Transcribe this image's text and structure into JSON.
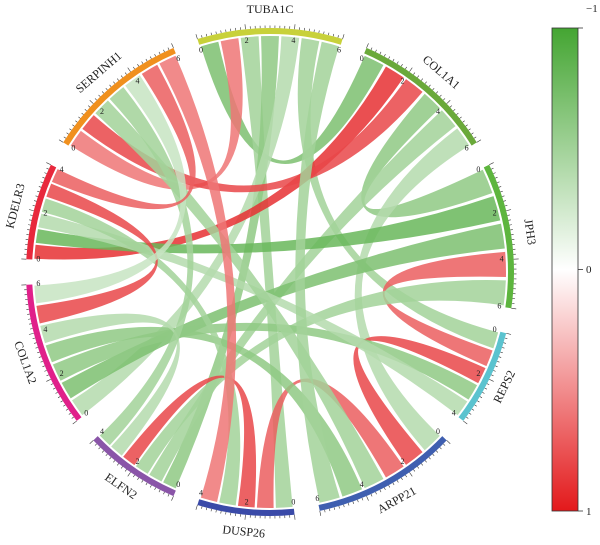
{
  "chart_data": {
    "type": "chord",
    "sectors": [
      {
        "name": "TUBA1C",
        "color": "#c8d13a",
        "max": 6,
        "ticks": [
          "0",
          "2",
          "4",
          "6"
        ]
      },
      {
        "name": "COL1A1",
        "color": "#6aa93a",
        "max": 6,
        "ticks": [
          "0",
          "2",
          "4",
          "6"
        ]
      },
      {
        "name": "JPH3",
        "color": "#5db53e",
        "max": 6,
        "ticks": [
          "0",
          "2",
          "4",
          "6"
        ]
      },
      {
        "name": "REPS2",
        "color": "#5bc3cf",
        "max": 4,
        "ticks": [
          "0",
          "2",
          "4"
        ]
      },
      {
        "name": "ARPP21",
        "color": "#3f5fb0",
        "max": 6,
        "ticks": [
          "0",
          "2",
          "4",
          "6"
        ]
      },
      {
        "name": "DUSP26",
        "color": "#3a4aa8",
        "max": 4,
        "ticks": [
          "0",
          "2",
          "4"
        ]
      },
      {
        "name": "ELFN2",
        "color": "#8a55a8",
        "max": 4,
        "ticks": [
          "0",
          "2",
          "4"
        ]
      },
      {
        "name": "COL1A2",
        "color": "#e0208a",
        "max": 6,
        "ticks": [
          "0",
          "2",
          "4",
          "6"
        ]
      },
      {
        "name": "KDELR3",
        "color": "#e8283c",
        "max": 4,
        "ticks": [
          "0",
          "2",
          "4"
        ]
      },
      {
        "name": "SERPINH1",
        "color": "#f0901e",
        "max": 6,
        "ticks": [
          "0",
          "2",
          "4",
          "6"
        ]
      }
    ],
    "links": [
      {
        "source": "TUBA1C",
        "target": "COL1A1",
        "value": -0.7
      },
      {
        "source": "TUBA1C",
        "target": "SERPINH1",
        "value": 0.6
      },
      {
        "source": "TUBA1C",
        "target": "DUSP26",
        "value": -0.5
      },
      {
        "source": "TUBA1C",
        "target": "ELFN2",
        "value": -0.6
      },
      {
        "source": "TUBA1C",
        "target": "COL1A2",
        "value": -0.4
      },
      {
        "source": "TUBA1C",
        "target": "REPS2",
        "value": -0.5
      },
      {
        "source": "COL1A1",
        "target": "KDELR3",
        "value": 0.9
      },
      {
        "source": "COL1A1",
        "target": "SERPINH1",
        "value": 0.8
      },
      {
        "source": "COL1A1",
        "target": "JPH3",
        "value": -0.6
      },
      {
        "source": "COL1A1",
        "target": "ELFN2",
        "value": -0.5
      },
      {
        "source": "COL1A1",
        "target": "ARPP21",
        "value": -0.4
      },
      {
        "source": "JPH3",
        "target": "KDELR3",
        "value": -0.8
      },
      {
        "source": "JPH3",
        "target": "COL1A2",
        "value": -0.7
      },
      {
        "source": "JPH3",
        "target": "REPS2",
        "value": 0.7
      },
      {
        "source": "JPH3",
        "target": "ELFN2",
        "value": -0.5
      },
      {
        "source": "REPS2",
        "target": "ARPP21",
        "value": 0.8
      },
      {
        "source": "REPS2",
        "target": "COL1A2",
        "value": -0.6
      },
      {
        "source": "REPS2",
        "target": "KDELR3",
        "value": -0.4
      },
      {
        "source": "ARPP21",
        "target": "DUSP26",
        "value": 0.7
      },
      {
        "source": "ARPP21",
        "target": "SERPINH1",
        "value": -0.5
      },
      {
        "source": "ARPP21",
        "target": "COL1A2",
        "value": -0.6
      },
      {
        "source": "DUSP26",
        "target": "ELFN2",
        "value": 0.8
      },
      {
        "source": "DUSP26",
        "target": "KDELR3",
        "value": -0.5
      },
      {
        "source": "ELFN2",
        "target": "COL1A2",
        "value": -0.4
      },
      {
        "source": "ELFN2",
        "target": "SERPINH1",
        "value": -0.5
      },
      {
        "source": "COL1A2",
        "target": "KDELR3",
        "value": 0.8
      },
      {
        "source": "COL1A2",
        "target": "SERPINH1",
        "value": -0.3
      },
      {
        "source": "KDELR3",
        "target": "SERPINH1",
        "value": 0.7
      },
      {
        "source": "DUSP26",
        "target": "SERPINH1",
        "value": 0.6
      },
      {
        "source": "ARPP21",
        "target": "TUBA1C",
        "value": -0.5
      }
    ],
    "colorbar": {
      "min": -1,
      "max": 1,
      "tick_labels": [
        "−1",
        "0",
        "1"
      ],
      "colors": {
        "negative": "#44a532",
        "zero": "#ffffff",
        "positive": "#e3191b"
      }
    }
  }
}
